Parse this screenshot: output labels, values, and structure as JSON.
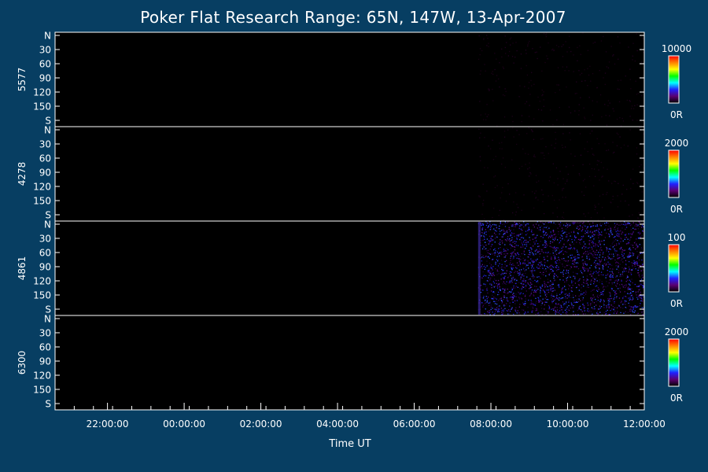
{
  "chart_data": {
    "type": "heatmap",
    "title": "Poker Flat Research Range: 65N, 147W, 13-Apr-2007",
    "xlabel": "Time UT",
    "x_range": [
      "20:38:00",
      "12:00:00"
    ],
    "x_ticks": [
      "22:00:00",
      "00:00:00",
      "02:00:00",
      "04:00:00",
      "06:00:00",
      "08:00:00",
      "10:00:00",
      "12:00:00"
    ],
    "data_start": "07:40:00",
    "y_ticks": [
      "N",
      "30",
      "60",
      "90",
      "120",
      "150",
      "S"
    ],
    "y_range": [
      0,
      180
    ],
    "panels": [
      {
        "label": "5577",
        "cbar_max": "10000",
        "cbar_min": "0R",
        "signal": "very faint"
      },
      {
        "label": "4278",
        "cbar_max": "2000",
        "cbar_min": "0R",
        "signal": "very faint"
      },
      {
        "label": "4861",
        "cbar_max": "100",
        "cbar_min": "0R",
        "signal": "noisy, low intensity"
      },
      {
        "label": "6300",
        "cbar_max": "2000",
        "cbar_min": "0R",
        "signal": "none"
      }
    ],
    "colors": {
      "background": "#073e62",
      "plot": "#000000",
      "axis": "#ffffff",
      "colorbar": [
        "#000000",
        "#5a0070",
        "#2020ff",
        "#00ffff",
        "#00ff00",
        "#ffff00",
        "#ff8000",
        "#ff0000"
      ]
    }
  }
}
